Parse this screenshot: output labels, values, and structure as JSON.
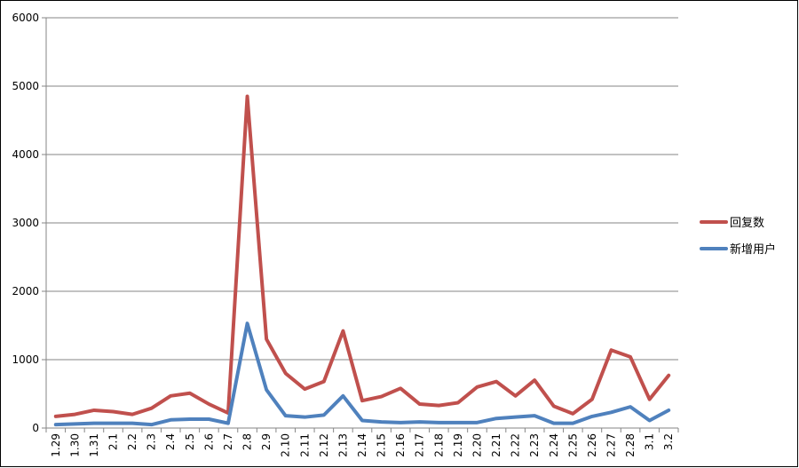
{
  "chart_data": {
    "type": "line",
    "title": "",
    "xlabel": "",
    "ylabel": "",
    "ylim": [
      0,
      6000
    ],
    "yticks": [
      0,
      1000,
      2000,
      3000,
      4000,
      5000,
      6000
    ],
    "grid": "horizontal",
    "legend_position": "right",
    "categories": [
      "1.29",
      "1.30",
      "1.31",
      "2.1",
      "2.2",
      "2.3",
      "2.4",
      "2.5",
      "2.6",
      "2.7",
      "2.8",
      "2.9",
      "2.10",
      "2.11",
      "2.12",
      "2.13",
      "2.14",
      "2.15",
      "2.16",
      "2.17",
      "2.18",
      "2.19",
      "2.20",
      "2.21",
      "2.22",
      "2.23",
      "2.24",
      "2.25",
      "2.26",
      "2.27",
      "2.28",
      "3.1",
      "3.2"
    ],
    "series": [
      {
        "name": "回复数",
        "color": "#c0504d",
        "values": [
          170,
          200,
          260,
          240,
          200,
          290,
          470,
          510,
          350,
          220,
          4850,
          1300,
          800,
          570,
          680,
          1420,
          400,
          460,
          580,
          350,
          330,
          370,
          600,
          680,
          470,
          700,
          320,
          210,
          420,
          1140,
          1040,
          420,
          770
        ]
      },
      {
        "name": "新增用户",
        "color": "#4f81bd",
        "values": [
          50,
          60,
          70,
          70,
          70,
          50,
          120,
          130,
          130,
          70,
          1530,
          560,
          180,
          160,
          190,
          470,
          110,
          90,
          80,
          90,
          80,
          80,
          80,
          140,
          160,
          180,
          70,
          70,
          170,
          230,
          310,
          110,
          260
        ]
      }
    ]
  }
}
